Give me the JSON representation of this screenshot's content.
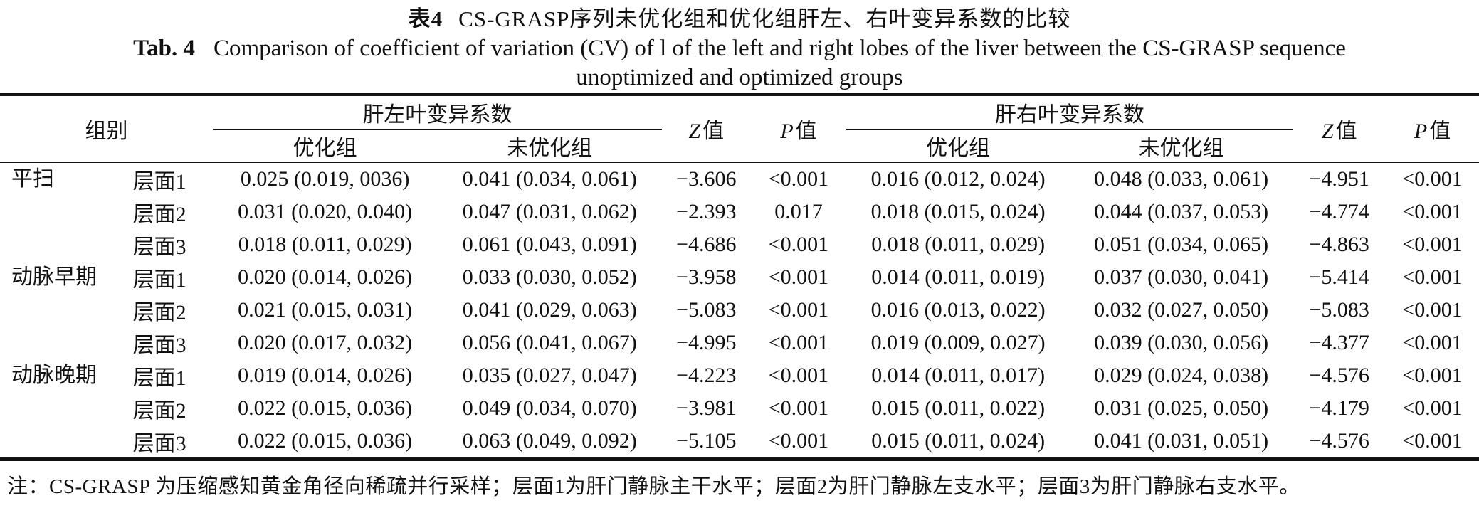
{
  "title": {
    "zh_label": "表4",
    "zh_text": "CS-GRASP序列未优化组和优化组肝左、右叶变异系数的比较",
    "en_label": "Tab. 4",
    "en_line1": "Comparison of coefficient of variation (CV) of l of the left and right lobes of the liver between the CS-GRASP sequence",
    "en_line2": "unoptimized and optimized groups"
  },
  "table": {
    "headers": {
      "group": "组别",
      "left_spanner": "肝左叶变异系数",
      "right_spanner": "肝右叶变异系数",
      "optimized": "优化组",
      "unoptimized": "未优化组",
      "z_symbol": "Z",
      "p_symbol": "P",
      "value_char": "值"
    },
    "rows": [
      {
        "phase": "平扫",
        "layer": "层面1",
        "opt_left": "0.025 (0.019, 0036)",
        "unopt_left": "0.041 (0.034, 0.061)",
        "z_left": "−3.606",
        "p_left": "<0.001",
        "opt_right": "0.016 (0.012, 0.024)",
        "unopt_right": "0.048 (0.033, 0.061)",
        "z_right": "−4.951",
        "p_right": "<0.001"
      },
      {
        "phase": "",
        "layer": "层面2",
        "opt_left": "0.031 (0.020, 0.040)",
        "unopt_left": "0.047 (0.031, 0.062)",
        "z_left": "−2.393",
        "p_left": "0.017",
        "opt_right": "0.018 (0.015, 0.024)",
        "unopt_right": "0.044 (0.037, 0.053)",
        "z_right": "−4.774",
        "p_right": "<0.001"
      },
      {
        "phase": "",
        "layer": "层面3",
        "opt_left": "0.018 (0.011, 0.029)",
        "unopt_left": "0.061 (0.043, 0.091)",
        "z_left": "−4.686",
        "p_left": "<0.001",
        "opt_right": "0.018 (0.011, 0.029)",
        "unopot_right": "",
        "unopt_right": "0.051 (0.034, 0.065)",
        "z_right": "−4.863",
        "p_right": "<0.001"
      },
      {
        "phase": "动脉早期",
        "layer": "层面1",
        "opt_left": "0.020 (0.014, 0.026)",
        "unopt_left": "0.033 (0.030, 0.052)",
        "z_left": "−3.958",
        "p_left": "<0.001",
        "opt_right": "0.014 (0.011, 0.019)",
        "unopt_right": "0.037 (0.030, 0.041)",
        "z_right": "−5.414",
        "p_right": "<0.001"
      },
      {
        "phase": "",
        "layer": "层面2",
        "opt_left": "0.021 (0.015, 0.031)",
        "unopt_left": "0.041 (0.029, 0.063)",
        "z_left": "−5.083",
        "p_left": "<0.001",
        "opt_right": "0.016 (0.013, 0.022)",
        "unopt_right": "0.032 (0.027, 0.050)",
        "z_right": "−5.083",
        "p_right": "<0.001"
      },
      {
        "phase": "",
        "layer": "层面3",
        "opt_left": "0.020 (0.017, 0.032)",
        "unopt_left": "0.056 (0.041, 0.067)",
        "z_left": "−4.995",
        "p_left": "<0.001",
        "opt_right": "0.019 (0.009, 0.027)",
        "unopt_right": "0.039 (0.030, 0.056)",
        "z_right": "−4.377",
        "p_right": "<0.001"
      },
      {
        "phase": "动脉晚期",
        "layer": "层面1",
        "opt_left": "0.019 (0.014, 0.026)",
        "unopt_left": "0.035 (0.027, 0.047)",
        "z_left": "−4.223",
        "p_left": "<0.001",
        "opt_right": "0.014 (0.011, 0.017)",
        "unopt_right": "0.029 (0.024, 0.038)",
        "z_right": "−4.576",
        "p_right": "<0.001"
      },
      {
        "phase": "",
        "layer": "层面2",
        "opt_left": "0.022 (0.015, 0.036)",
        "unopt_left": "0.049 (0.034, 0.070)",
        "z_left": "−3.981",
        "p_left": "<0.001",
        "opt_right": "0.015 (0.011, 0.022)",
        "unopt_right": "0.031 (0.025, 0.050)",
        "z_right": "−4.179",
        "p_right": "<0.001"
      },
      {
        "phase": "",
        "layer": "层面3",
        "opt_left": "0.022 (0.015, 0.036)",
        "unopt_left": "0.063 (0.049, 0.092)",
        "z_left": "−5.105",
        "p_left": "<0.001",
        "opt_right": "0.015 (0.011, 0.024)",
        "unopt_right": "0.041 (0.031, 0.051)",
        "z_right": "−4.576",
        "p_right": "<0.001"
      }
    ]
  },
  "note": "注：CS-GRASP 为压缩感知黄金角径向稀疏并行采样；层面1为肝门静脉主干水平；层面2为肝门静脉左支水平；层面3为肝门静脉右支水平。"
}
